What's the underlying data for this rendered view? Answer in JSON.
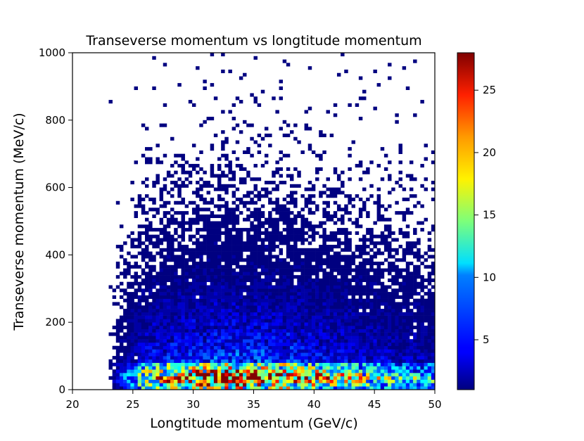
{
  "chart_data": {
    "type": "heatmap",
    "title": "Transeverse momentum vs longtitude momentum",
    "xlabel": "Longtitude momentum (GeV/c)",
    "ylabel": "Transeverse momentum (MeV/c)",
    "xlim": [
      20,
      50
    ],
    "ylim": [
      0,
      1000
    ],
    "x_ticks": [
      "20",
      "25",
      "30",
      "35",
      "40",
      "45",
      "50"
    ],
    "y_ticks": [
      "0",
      "200",
      "400",
      "600",
      "800",
      "1000"
    ],
    "colormap": "jet",
    "color_range": [
      1,
      28
    ],
    "colorbar_ticks": [
      "5",
      "10",
      "15",
      "20",
      "25"
    ],
    "grid": false,
    "bins": {
      "x_bins": 100,
      "y_bins": 100,
      "x_range": [
        20,
        50
      ],
      "y_range": [
        0,
        1000
      ]
    },
    "density_model": {
      "description": "approximate 2D histogram counts",
      "core_peak_count": 28,
      "dense_band_pt_max": 80,
      "populated_x_min": 22.5,
      "sparse_pt_max": 990
    }
  }
}
